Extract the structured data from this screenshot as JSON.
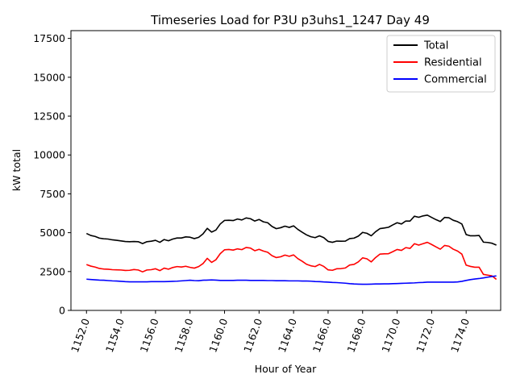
{
  "chart_data": {
    "type": "line",
    "title": "Timeseries Load for P3U p3uhs1_1247  Day 49",
    "xlabel": "Hour of Year",
    "ylabel": "kW total",
    "xlim": [
      1151.1,
      1176.0
    ],
    "ylim": [
      0,
      18000
    ],
    "x_ticks": [
      1152,
      1154,
      1156,
      1158,
      1160,
      1162,
      1164,
      1166,
      1168,
      1170,
      1172,
      1174
    ],
    "x_tick_labels": [
      "1152.0",
      "1154.0",
      "1156.0",
      "1158.0",
      "1160.0",
      "1162.0",
      "1164.0",
      "1166.0",
      "1168.0",
      "1170.0",
      "1172.0",
      "1174.0"
    ],
    "y_ticks": [
      0,
      2500,
      5000,
      7500,
      10000,
      12500,
      15000,
      17500
    ],
    "y_tick_labels": [
      "0",
      "2500",
      "5000",
      "7500",
      "10000",
      "12500",
      "15000",
      "17500"
    ],
    "legend_position": "top-right",
    "x_start": 1152.0,
    "x_step": 0.25,
    "series": [
      {
        "name": "Total",
        "color": "#000000",
        "values": [
          4950,
          4820,
          4760,
          4650,
          4610,
          4590,
          4540,
          4510,
          4470,
          4430,
          4420,
          4430,
          4420,
          4300,
          4420,
          4450,
          4510,
          4380,
          4560,
          4480,
          4590,
          4660,
          4660,
          4730,
          4710,
          4620,
          4700,
          4920,
          5280,
          5040,
          5170,
          5560,
          5790,
          5800,
          5780,
          5880,
          5820,
          5950,
          5900,
          5750,
          5850,
          5700,
          5640,
          5400,
          5260,
          5320,
          5420,
          5340,
          5440,
          5210,
          5030,
          4860,
          4740,
          4680,
          4800,
          4680,
          4440,
          4380,
          4460,
          4450,
          4460,
          4620,
          4650,
          4780,
          5020,
          4960,
          4800,
          5060,
          5260,
          5300,
          5350,
          5500,
          5640,
          5560,
          5750,
          5750,
          6060,
          5990,
          6080,
          6130,
          5980,
          5840,
          5720,
          5980,
          5960,
          5800,
          5710,
          5560,
          4880,
          4800,
          4800,
          4820,
          4390,
          4370,
          4320,
          4200
        ]
      },
      {
        "name": "Residential",
        "color": "#ff0000",
        "values": [
          2950,
          2850,
          2790,
          2700,
          2660,
          2650,
          2620,
          2610,
          2600,
          2570,
          2580,
          2630,
          2600,
          2480,
          2600,
          2620,
          2680,
          2560,
          2720,
          2650,
          2760,
          2820,
          2790,
          2840,
          2770,
          2720,
          2820,
          3010,
          3350,
          3090,
          3260,
          3650,
          3900,
          3920,
          3880,
          3960,
          3910,
          4050,
          4010,
          3840,
          3930,
          3820,
          3740,
          3520,
          3400,
          3450,
          3560,
          3480,
          3570,
          3330,
          3160,
          2970,
          2870,
          2820,
          2960,
          2830,
          2610,
          2580,
          2680,
          2690,
          2730,
          2920,
          2960,
          3120,
          3380,
          3320,
          3120,
          3400,
          3620,
          3640,
          3650,
          3780,
          3920,
          3860,
          4040,
          3990,
          4290,
          4200,
          4290,
          4380,
          4240,
          4090,
          3940,
          4180,
          4130,
          3940,
          3820,
          3620,
          2910,
          2830,
          2780,
          2780,
          2320,
          2270,
          2220,
          2000
        ]
      },
      {
        "name": "Commercial",
        "color": "#0000ff",
        "values": [
          2010,
          1990,
          1970,
          1950,
          1940,
          1920,
          1900,
          1890,
          1870,
          1850,
          1840,
          1840,
          1840,
          1840,
          1840,
          1850,
          1850,
          1850,
          1850,
          1860,
          1870,
          1880,
          1900,
          1920,
          1940,
          1920,
          1910,
          1940,
          1950,
          1960,
          1950,
          1930,
          1930,
          1930,
          1930,
          1940,
          1940,
          1940,
          1930,
          1930,
          1930,
          1930,
          1920,
          1920,
          1910,
          1910,
          1910,
          1900,
          1900,
          1900,
          1890,
          1890,
          1880,
          1860,
          1850,
          1830,
          1820,
          1800,
          1790,
          1770,
          1750,
          1720,
          1700,
          1690,
          1680,
          1680,
          1690,
          1700,
          1700,
          1710,
          1710,
          1720,
          1730,
          1740,
          1750,
          1760,
          1770,
          1790,
          1800,
          1820,
          1820,
          1820,
          1820,
          1820,
          1820,
          1820,
          1830,
          1870,
          1930,
          1980,
          2020,
          2050,
          2090,
          2140,
          2180,
          2220
        ]
      }
    ]
  }
}
